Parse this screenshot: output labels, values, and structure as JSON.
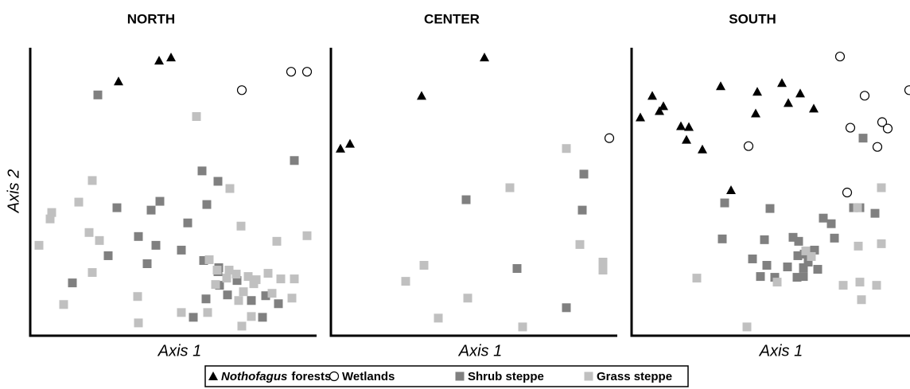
{
  "chart_data": [
    {
      "type": "scatter",
      "title": "NORTH",
      "xlabel": "Axis 1",
      "ylabel": "Axis 2",
      "xlim": [
        0,
        360
      ],
      "ylim": [
        0,
        360
      ],
      "series": [
        {
          "marker": "triangle",
          "color": "#000000",
          "x": [
            111,
            162,
            177
          ],
          "y": [
            318,
            344,
            348
          ]
        },
        {
          "marker": "circle",
          "color": "#000000",
          "x": [
            328,
            348,
            266
          ],
          "y": [
            330,
            330,
            307
          ]
        },
        {
          "marker": "square",
          "color": "#808080",
          "x": [
            85,
            216,
            236,
            332,
            109,
            152,
            163,
            222,
            198,
            136,
            158,
            190,
            98,
            147,
            53,
            218,
            237,
            238,
            260,
            221,
            248,
            278,
            296,
            312,
            205,
            292,
            236
          ],
          "y": [
            301,
            206,
            193,
            219,
            160,
            157,
            168,
            164,
            141,
            124,
            113,
            107,
            100,
            90,
            66,
            94,
            85,
            63,
            69,
            46,
            51,
            44,
            50,
            40,
            23,
            23,
            80
          ]
        },
        {
          "marker": "square",
          "color": "#c0c0c0",
          "x": [
            209,
            78,
            251,
            61,
            27,
            25,
            265,
            74,
            87,
            11,
            310,
            348,
            78,
            225,
            235,
            250,
            259,
            274,
            284,
            299,
            315,
            332,
            247,
            268,
            281,
            304,
            329,
            262,
            42,
            135,
            190,
            223,
            266,
            278,
            136,
            233
          ],
          "y": [
            274,
            194,
            184,
            167,
            154,
            146,
            137,
            129,
            119,
            113,
            118,
            125,
            79,
            95,
            82,
            82,
            77,
            74,
            70,
            78,
            71,
            71,
            72,
            55,
            65,
            53,
            47,
            44,
            39,
            49,
            29,
            29,
            12,
            24,
            16,
            64
          ]
        }
      ]
    },
    {
      "type": "scatter",
      "title": "CENTER",
      "xlabel": "Axis 1",
      "xlim": [
        0,
        360
      ],
      "ylim": [
        0,
        360
      ],
      "series": [
        {
          "marker": "triangle",
          "color": "#000000",
          "x": [
            12,
            24,
            114,
            193
          ],
          "y": [
            234,
            240,
            300,
            348
          ]
        },
        {
          "marker": "circle",
          "color": "#000000",
          "x": [
            350
          ],
          "y": [
            247
          ]
        },
        {
          "marker": "square",
          "color": "#808080",
          "x": [
            318,
            316,
            170,
            234,
            296
          ],
          "y": [
            202,
            157,
            170,
            84,
            35
          ]
        },
        {
          "marker": "square",
          "color": "#c0c0c0",
          "x": [
            296,
            225,
            313,
            342,
            342,
            117,
            94,
            172,
            135,
            241
          ],
          "y": [
            234,
            185,
            114,
            92,
            82,
            88,
            68,
            47,
            22,
            11
          ]
        }
      ]
    },
    {
      "type": "scatter",
      "title": "SOUTH",
      "xlabel": "Axis 1",
      "xlim": [
        0,
        360
      ],
      "ylim": [
        0,
        360
      ],
      "series": [
        {
          "marker": "triangle",
          "color": "#000000",
          "x": [
            11,
            26,
            35,
            40,
            62,
            72,
            69,
            89,
            112,
            158,
            156,
            189,
            197,
            212,
            229,
            125
          ],
          "y": [
            273,
            300,
            281,
            287,
            262,
            261,
            245,
            233,
            312,
            305,
            278,
            316,
            291,
            303,
            284,
            182
          ]
        },
        {
          "marker": "circle",
          "color": "#000000",
          "x": [
            262,
            349,
            293,
            275,
            315,
            322,
            309,
            147,
            271
          ],
          "y": [
            349,
            307,
            300,
            260,
            267,
            259,
            236,
            237,
            179
          ]
        },
        {
          "marker": "square",
          "color": "#808080",
          "x": [
            291,
            117,
            174,
            241,
            251,
            279,
            287,
            306,
            255,
            114,
            167,
            203,
            210,
            230,
            209,
            217,
            222,
            152,
            170,
            196,
            216,
            234,
            208,
            180,
            162,
            216
          ],
          "y": [
            247,
            166,
            159,
            147,
            140,
            160,
            160,
            153,
            122,
            121,
            120,
            123,
            118,
            107,
            100,
            102,
            92,
            96,
            88,
            86,
            85,
            83,
            73,
            73,
            74,
            74
          ]
        },
        {
          "marker": "square",
          "color": "#c0c0c0",
          "x": [
            314,
            284,
            314,
            285,
            219,
            226,
            287,
            308,
            266,
            289,
            82,
            183,
            145
          ],
          "y": [
            185,
            160,
            115,
            112,
            106,
            99,
            67,
            63,
            63,
            45,
            72,
            67,
            11
          ]
        }
      ]
    }
  ],
  "legend": [
    {
      "emphasis": "Nothofagus",
      "name": "forests"
    },
    {
      "name": "Wetlands"
    },
    {
      "name": "Shrub steppe"
    },
    {
      "name": "Grass steppe"
    }
  ]
}
